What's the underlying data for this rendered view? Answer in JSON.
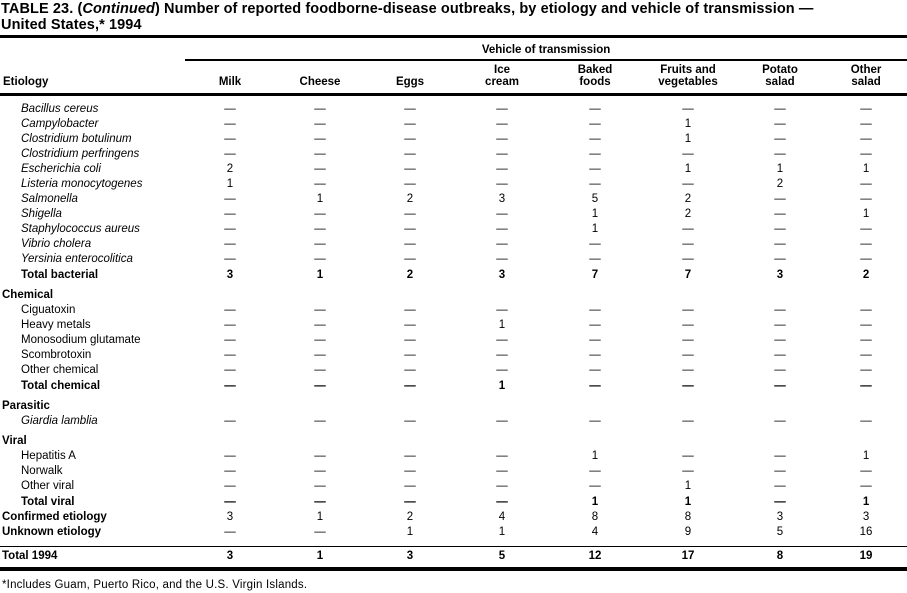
{
  "page": {
    "title": {
      "part1": "TABLE 23. (",
      "continued": "Continued",
      "part2": ") Number of reported foodborne-disease  outbreaks, by etiology and vehicle of transmission —",
      "part3": "United States,* 1994"
    },
    "footnote": "*Includes Guam, Puerto Rico, and the U.S. Virgin Islands."
  },
  "table": {
    "spanner": "Vehicle of transmission",
    "etiology_header": "Etiology",
    "columns": [
      "Milk",
      "Cheese",
      "Eggs",
      "Ice\ncream",
      "Baked\nfoods",
      "Fruits and\nvegetables",
      "Potato\nsalad",
      "Other\nsalad"
    ],
    "rows": [
      {
        "label": "Bacillus cereus",
        "type": "species",
        "values": [
          "—",
          "—",
          "—",
          "—",
          "—",
          "—",
          "—",
          "—"
        ]
      },
      {
        "label": "Campylobacter",
        "type": "species",
        "values": [
          "—",
          "—",
          "—",
          "—",
          "—",
          "1",
          "—",
          "—"
        ]
      },
      {
        "label": "Clostridium botulinum",
        "type": "species",
        "values": [
          "—",
          "—",
          "—",
          "—",
          "—",
          "1",
          "—",
          "—"
        ]
      },
      {
        "label": "Clostridium perfringens",
        "type": "species",
        "values": [
          "—",
          "—",
          "—",
          "—",
          "—",
          "—",
          "—",
          "—"
        ]
      },
      {
        "label": "Escherichia coli",
        "type": "species",
        "values": [
          "2",
          "—",
          "—",
          "—",
          "—",
          "1",
          "1",
          "1"
        ]
      },
      {
        "label": "Listeria monocytogenes",
        "type": "species",
        "values": [
          "1",
          "—",
          "—",
          "—",
          "—",
          "—",
          "2",
          "—"
        ]
      },
      {
        "label": "Salmonella",
        "type": "species",
        "values": [
          "—",
          "1",
          "2",
          "3",
          "5",
          "2",
          "—",
          "—"
        ]
      },
      {
        "label": "Shigella",
        "type": "species",
        "values": [
          "—",
          "—",
          "—",
          "—",
          "1",
          "2",
          "—",
          "1"
        ]
      },
      {
        "label": "Staphylococcus aureus",
        "type": "species",
        "values": [
          "—",
          "—",
          "—",
          "—",
          "1",
          "—",
          "—",
          "—"
        ]
      },
      {
        "label": "Vibrio cholera",
        "type": "species",
        "values": [
          "—",
          "—",
          "—",
          "—",
          "—",
          "—",
          "—",
          "—"
        ]
      },
      {
        "label": "Yersinia enterocolitica",
        "type": "species",
        "values": [
          "—",
          "—",
          "—",
          "—",
          "—",
          "—",
          "—",
          "—"
        ]
      },
      {
        "label": "Total bacterial",
        "type": "total",
        "values": [
          "3",
          "1",
          "2",
          "3",
          "7",
          "7",
          "3",
          "2"
        ]
      },
      {
        "label": "Chemical",
        "type": "section",
        "values": []
      },
      {
        "label": "Ciguatoxin",
        "type": "item",
        "values": [
          "—",
          "—",
          "—",
          "—",
          "—",
          "—",
          "—",
          "—"
        ]
      },
      {
        "label": "Heavy metals",
        "type": "item",
        "values": [
          "—",
          "—",
          "—",
          "1",
          "—",
          "—",
          "—",
          "—"
        ]
      },
      {
        "label": "Monosodium glutamate",
        "type": "item",
        "values": [
          "—",
          "—",
          "—",
          "—",
          "—",
          "—",
          "—",
          "—"
        ]
      },
      {
        "label": "Scombrotoxin",
        "type": "item",
        "values": [
          "—",
          "—",
          "—",
          "—",
          "—",
          "—",
          "—",
          "—"
        ]
      },
      {
        "label": "Other chemical",
        "type": "item",
        "values": [
          "—",
          "—",
          "—",
          "—",
          "—",
          "—",
          "—",
          "—"
        ]
      },
      {
        "label": "Total chemical",
        "type": "total",
        "values": [
          "—",
          "—",
          "—",
          "1",
          "—",
          "—",
          "—",
          "—"
        ]
      },
      {
        "label": "Parasitic",
        "type": "section",
        "values": []
      },
      {
        "label": "Giardia lamblia",
        "type": "species",
        "values": [
          "—",
          "—",
          "—",
          "—",
          "—",
          "—",
          "—",
          "—"
        ]
      },
      {
        "label": "Viral",
        "type": "section",
        "values": []
      },
      {
        "label": "Hepatitis A",
        "type": "item",
        "values": [
          "—",
          "—",
          "—",
          "—",
          "1",
          "—",
          "—",
          "1"
        ]
      },
      {
        "label": "Norwalk",
        "type": "item",
        "values": [
          "—",
          "—",
          "—",
          "—",
          "—",
          "—",
          "—",
          "—"
        ]
      },
      {
        "label": "Other viral",
        "type": "item",
        "values": [
          "—",
          "—",
          "—",
          "—",
          "—",
          "1",
          "—",
          "—"
        ]
      },
      {
        "label": "Total viral",
        "type": "total",
        "values": [
          "—",
          "—",
          "—",
          "—",
          "1",
          "1",
          "—",
          "1"
        ]
      },
      {
        "label": "Confirmed etiology",
        "type": "summary",
        "values": [
          "3",
          "1",
          "2",
          "4",
          "8",
          "8",
          "3",
          "3"
        ]
      },
      {
        "label": "Unknown etiology",
        "type": "summary",
        "values": [
          "—",
          "—",
          "1",
          "1",
          "4",
          "9",
          "5",
          "16"
        ]
      },
      {
        "label": "",
        "type": "spacer",
        "values": []
      },
      {
        "label": "Total 1994",
        "type": "grand",
        "values": [
          "3",
          "1",
          "3",
          "5",
          "12",
          "17",
          "8",
          "19"
        ]
      }
    ]
  }
}
